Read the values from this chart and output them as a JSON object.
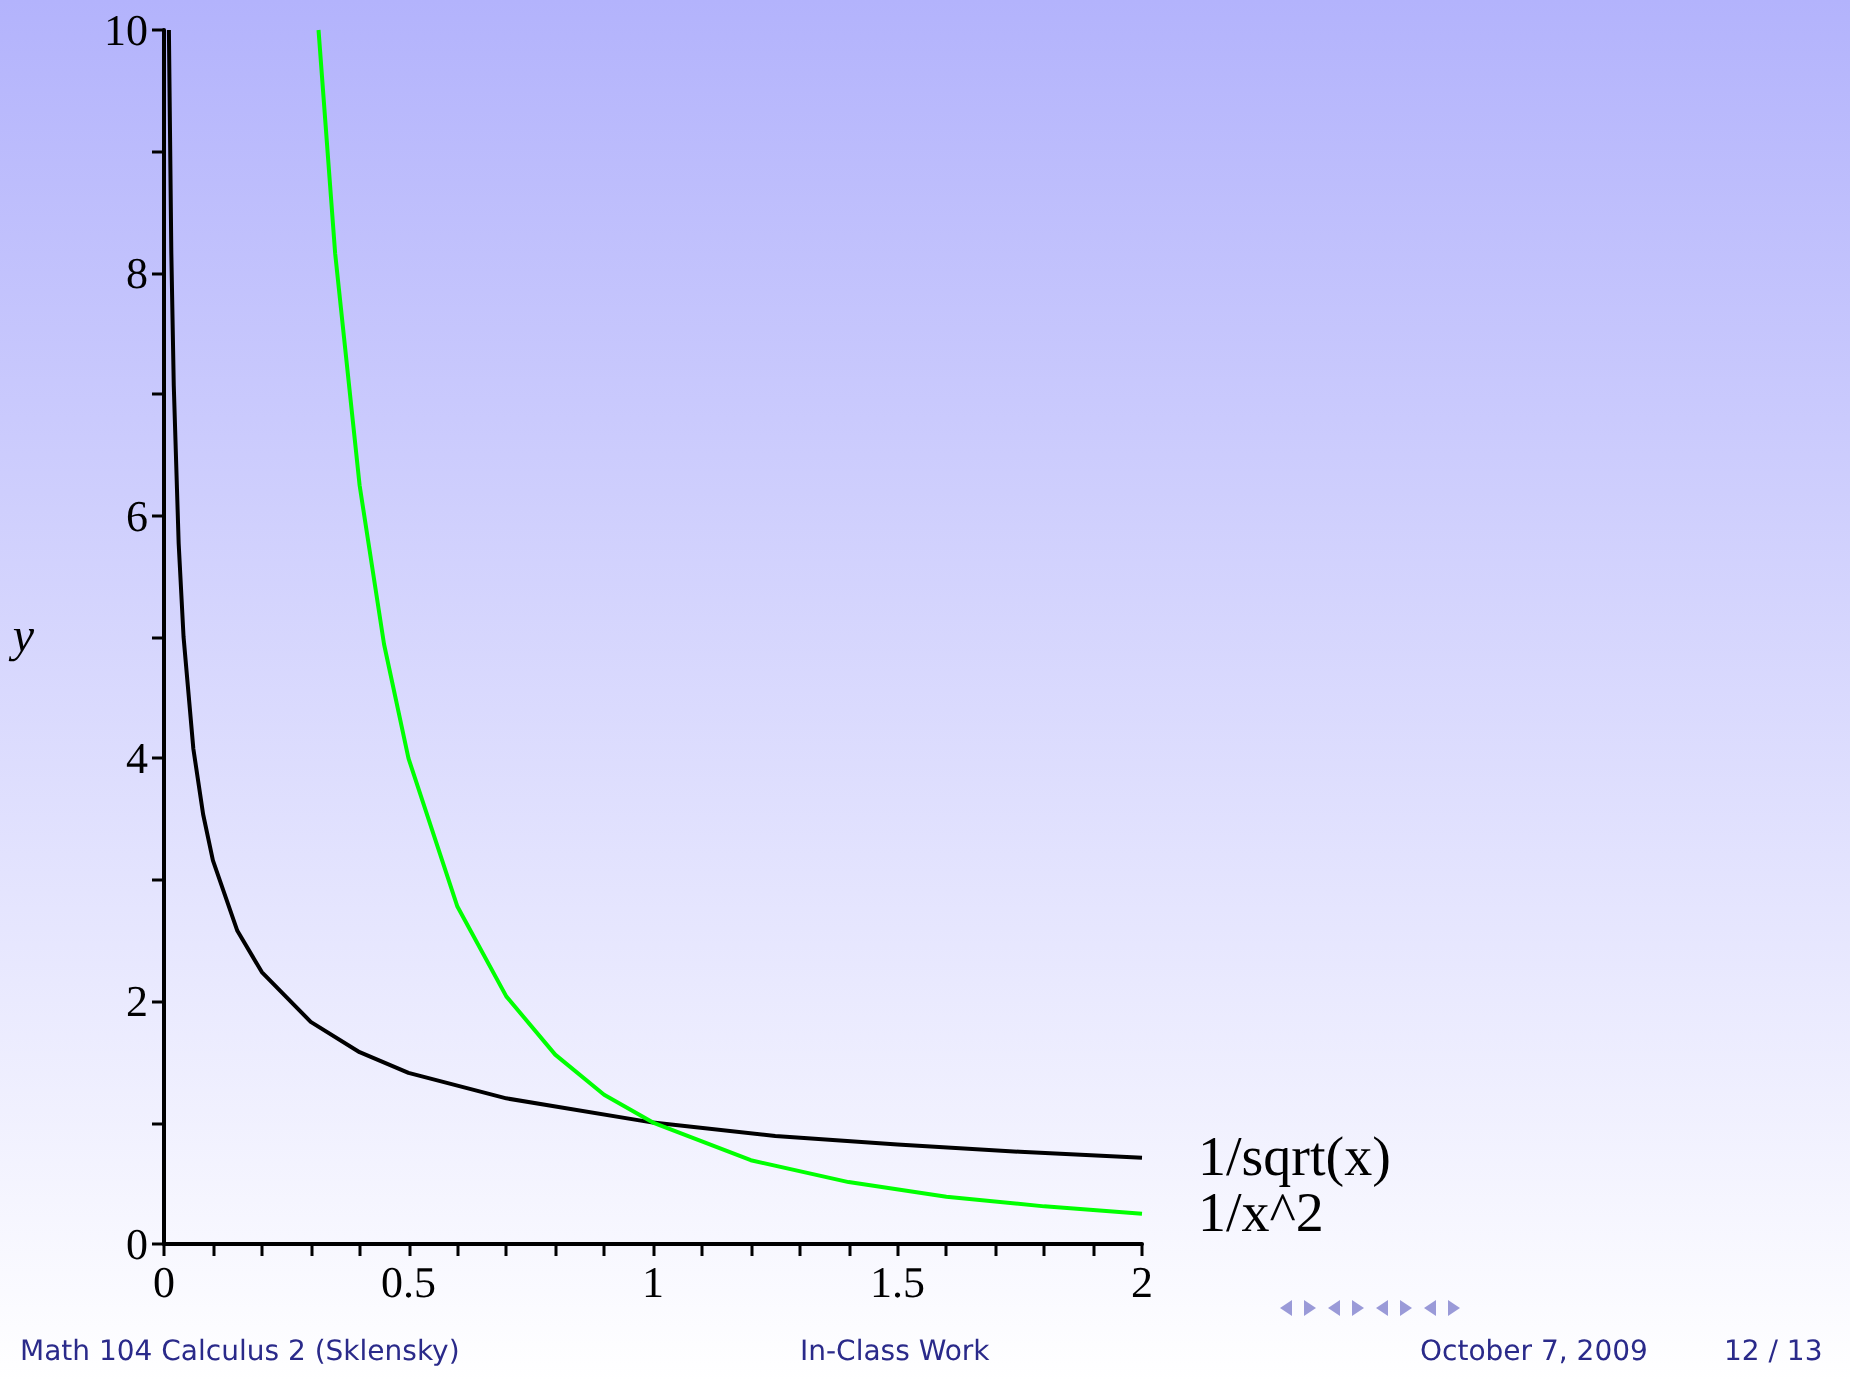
{
  "chart_data": {
    "type": "line",
    "ylabel": "y",
    "xlim": [
      0,
      2
    ],
    "ylim": [
      0,
      10
    ],
    "xticks": [
      0,
      {
        "value": 0.1,
        "label": null
      },
      {
        "value": 0.2,
        "label": null
      },
      {
        "value": 0.3,
        "label": null
      },
      {
        "value": 0.4,
        "label": null
      },
      0.5,
      {
        "value": 0.6,
        "label": null
      },
      {
        "value": 0.7,
        "label": null
      },
      {
        "value": 0.8,
        "label": null
      },
      {
        "value": 0.9,
        "label": null
      },
      1,
      {
        "value": 1.1,
        "label": null
      },
      {
        "value": 1.2,
        "label": null
      },
      {
        "value": 1.3,
        "label": null
      },
      {
        "value": 1.4,
        "label": null
      },
      1.5,
      {
        "value": 1.6,
        "label": null
      },
      {
        "value": 1.7,
        "label": null
      },
      {
        "value": 1.8,
        "label": null
      },
      {
        "value": 1.9,
        "label": null
      },
      2
    ],
    "yticks": [
      0,
      {
        "value": 1,
        "label": null
      },
      2,
      {
        "value": 3,
        "label": null
      },
      4,
      {
        "value": 5,
        "label": null
      },
      6,
      {
        "value": 7,
        "label": null
      },
      8,
      {
        "value": 9,
        "label": null
      },
      10
    ],
    "grid": false,
    "legend": false,
    "marker": "none",
    "line_style": "solid",
    "series": [
      {
        "name": "1/sqrt(x)",
        "color": "#000000",
        "x": [
          0.01,
          0.015,
          0.02,
          0.03,
          0.04,
          0.06,
          0.08,
          0.1,
          0.15,
          0.2,
          0.3,
          0.4,
          0.5,
          0.7,
          1,
          1.25,
          1.5,
          1.75,
          2
        ],
        "values": [
          10,
          8.16,
          7.07,
          5.77,
          5,
          4.08,
          3.54,
          3.16,
          2.58,
          2.24,
          1.83,
          1.58,
          1.41,
          1.2,
          1,
          0.89,
          0.82,
          0.76,
          0.71
        ]
      },
      {
        "name": "1/x^2",
        "color": "#00ff00",
        "x": [
          0.316,
          0.35,
          0.4,
          0.45,
          0.5,
          0.6,
          0.7,
          0.8,
          0.9,
          1,
          1.2,
          1.4,
          1.6,
          1.8,
          2
        ],
        "values": [
          10,
          8.16,
          6.25,
          4.94,
          4,
          2.78,
          2.04,
          1.56,
          1.23,
          1,
          0.69,
          0.51,
          0.39,
          0.31,
          0.25
        ]
      }
    ],
    "annotations": [
      "Math 104 Calculus 2  (Sklensky)",
      "In-Class Work",
      "October 7, 2009",
      "12 / 13"
    ]
  }
}
